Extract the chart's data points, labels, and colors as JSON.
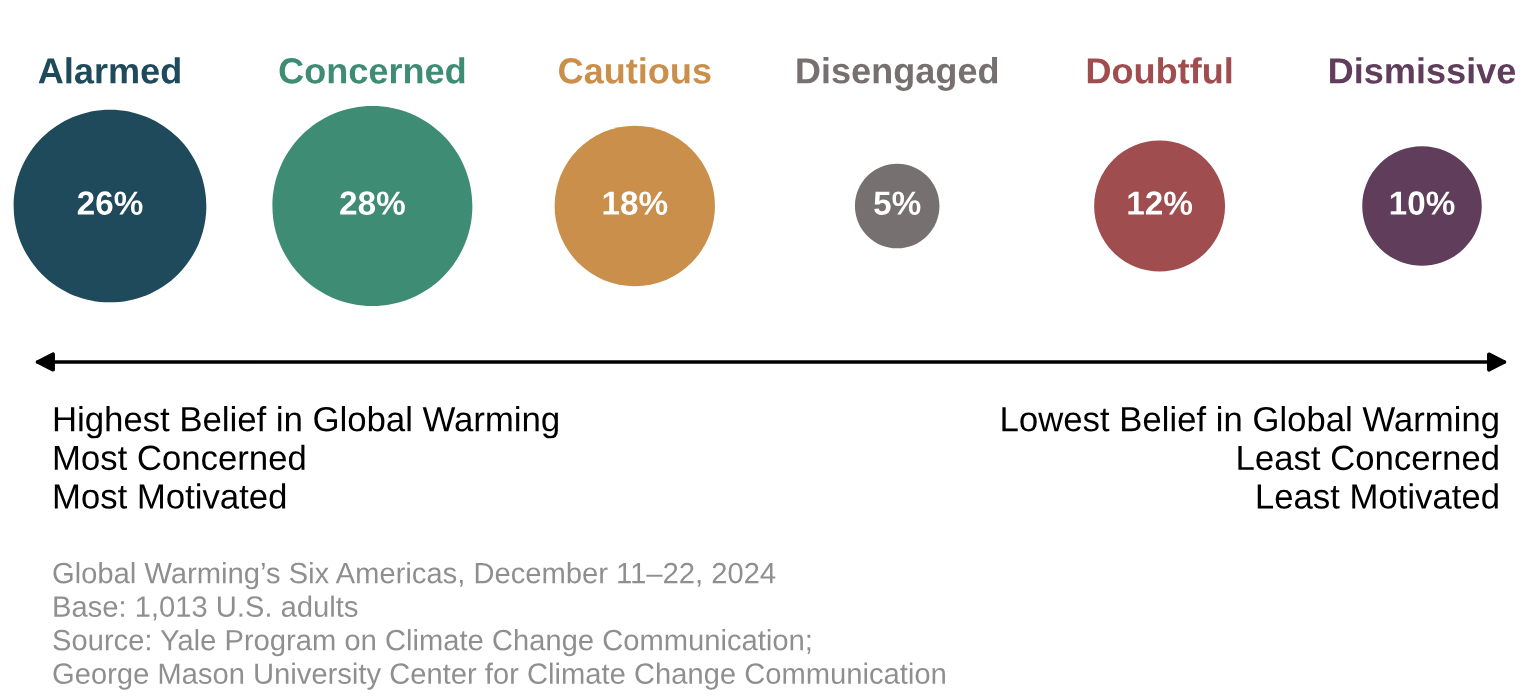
{
  "chart_data": {
    "type": "other",
    "categories": [
      "Alarmed",
      "Concerned",
      "Cautious",
      "Disengaged",
      "Doubtful",
      "Dismissive"
    ],
    "values": [
      26,
      28,
      18,
      5,
      12,
      10
    ],
    "colors": [
      "#1f4a5c",
      "#3f8c74",
      "#c98f4b",
      "#777071",
      "#a04d4f",
      "#5f3d5b"
    ],
    "value_labels": [
      "26%",
      "28%",
      "18%",
      "5%",
      "12%",
      "10%"
    ],
    "annotations": [
      "Highest Belief in Global Warming\nMost Concerned\nMost Motivated",
      "Lowest Belief in Global Warming\nLeast Concerned\nLeast Motivated",
      "Global Warming’s Six Americas, December 11–22, 2024\nBase: 1,013 U.S. adults\nSource: Yale Program on Climate Change Communication;\nGeorge Mason University Center for Climate Change Communication"
    ]
  }
}
